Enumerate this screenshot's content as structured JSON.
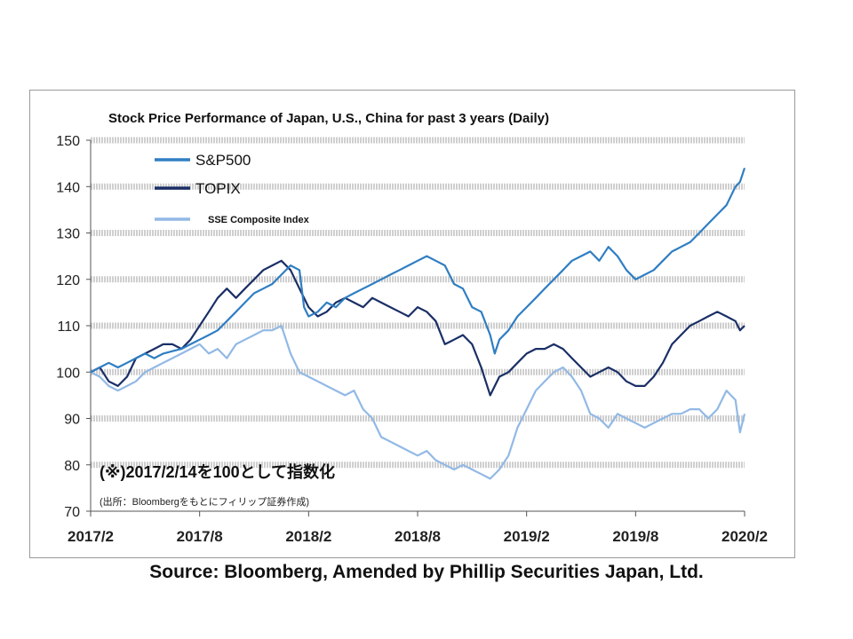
{
  "source_text": "Source: Bloomberg, Amended by Phillip Securities Japan, Ltd.",
  "chart_data": {
    "type": "line",
    "title": "Stock Price Performance of Japan, U.S., China for past 3 years (Daily)",
    "note_main": "(※)2017/2/14を100として指数化",
    "note_sub": "(出所：Bloombergをもとにフィリップ証券作成)",
    "xlabel": "",
    "ylabel": "",
    "ylim": [
      70,
      150
    ],
    "yticks": [
      70,
      80,
      90,
      100,
      110,
      120,
      130,
      140,
      150
    ],
    "xlim": [
      2017.125,
      2020.125
    ],
    "xticks": [
      {
        "value": 2017.125,
        "label": "2017/2"
      },
      {
        "value": 2017.625,
        "label": "2017/8"
      },
      {
        "value": 2018.125,
        "label": "2018/2"
      },
      {
        "value": 2018.625,
        "label": "2018/8"
      },
      {
        "value": 2019.125,
        "label": "2019/2"
      },
      {
        "value": 2019.625,
        "label": "2019/8"
      },
      {
        "value": 2020.125,
        "label": "2020/2"
      }
    ],
    "grid": "horizontal dashed bands",
    "legend_position": "top-left",
    "series": [
      {
        "name": "S&P500",
        "color": "#2f7ec2",
        "x": [
          2017.125,
          2017.167,
          2017.208,
          2017.25,
          2017.292,
          2017.333,
          2017.375,
          2017.417,
          2017.458,
          2017.5,
          2017.542,
          2017.583,
          2017.625,
          2017.667,
          2017.708,
          2017.75,
          2017.792,
          2017.833,
          2017.875,
          2017.917,
          2017.958,
          2018.0,
          2018.042,
          2018.083,
          2018.104,
          2018.125,
          2018.167,
          2018.208,
          2018.25,
          2018.292,
          2018.333,
          2018.375,
          2018.417,
          2018.458,
          2018.5,
          2018.542,
          2018.583,
          2018.625,
          2018.667,
          2018.708,
          2018.75,
          2018.792,
          2018.833,
          2018.875,
          2018.917,
          2018.958,
          2018.979,
          2019.0,
          2019.042,
          2019.083,
          2019.125,
          2019.167,
          2019.208,
          2019.25,
          2019.292,
          2019.333,
          2019.375,
          2019.417,
          2019.458,
          2019.5,
          2019.542,
          2019.583,
          2019.625,
          2019.667,
          2019.708,
          2019.75,
          2019.792,
          2019.833,
          2019.875,
          2019.917,
          2019.958,
          2020.0,
          2020.042,
          2020.083,
          2020.104,
          2020.125
        ],
        "values": [
          100,
          101,
          102,
          101,
          102,
          103,
          104,
          103,
          104,
          104.5,
          105,
          106,
          107,
          108,
          109,
          111,
          113,
          115,
          117,
          118,
          119,
          121,
          123,
          122,
          114,
          112,
          113,
          115,
          114,
          116,
          117,
          118,
          119,
          120,
          121,
          122,
          123,
          124,
          125,
          124,
          123,
          119,
          118,
          114,
          113,
          108,
          104,
          107,
          109,
          112,
          114,
          116,
          118,
          120,
          122,
          124,
          125,
          126,
          124,
          127,
          125,
          122,
          120,
          121,
          122,
          124,
          126,
          127,
          128,
          130,
          132,
          134,
          136,
          140,
          141,
          144
        ]
      },
      {
        "name": "TOPIX",
        "color": "#1a2f66",
        "x": [
          2017.125,
          2017.167,
          2017.208,
          2017.25,
          2017.292,
          2017.333,
          2017.375,
          2017.417,
          2017.458,
          2017.5,
          2017.542,
          2017.583,
          2017.625,
          2017.667,
          2017.708,
          2017.75,
          2017.792,
          2017.833,
          2017.875,
          2017.917,
          2017.958,
          2018.0,
          2018.042,
          2018.083,
          2018.125,
          2018.167,
          2018.208,
          2018.25,
          2018.292,
          2018.333,
          2018.375,
          2018.417,
          2018.458,
          2018.5,
          2018.542,
          2018.583,
          2018.625,
          2018.667,
          2018.708,
          2018.75,
          2018.792,
          2018.833,
          2018.875,
          2018.917,
          2018.958,
          2019.0,
          2019.042,
          2019.083,
          2019.125,
          2019.167,
          2019.208,
          2019.25,
          2019.292,
          2019.333,
          2019.375,
          2019.417,
          2019.458,
          2019.5,
          2019.542,
          2019.583,
          2019.625,
          2019.667,
          2019.708,
          2019.75,
          2019.792,
          2019.833,
          2019.875,
          2019.917,
          2019.958,
          2020.0,
          2020.042,
          2020.083,
          2020.104,
          2020.125
        ],
        "values": [
          100,
          101,
          98,
          97,
          99,
          103,
          104,
          105,
          106,
          106,
          105,
          107,
          110,
          113,
          116,
          118,
          116,
          118,
          120,
          122,
          123,
          124,
          122,
          118,
          114,
          112,
          113,
          115,
          116,
          115,
          114,
          116,
          115,
          114,
          113,
          112,
          114,
          113,
          111,
          106,
          107,
          108,
          106,
          101,
          95,
          99,
          100,
          102,
          104,
          105,
          105,
          106,
          105,
          103,
          101,
          99,
          100,
          101,
          100,
          98,
          97,
          97,
          99,
          102,
          106,
          108,
          110,
          111,
          112,
          113,
          112,
          111,
          109,
          110
        ]
      },
      {
        "name": "SSE Composite Index",
        "color": "#92b9e5",
        "x": [
          2017.125,
          2017.167,
          2017.208,
          2017.25,
          2017.292,
          2017.333,
          2017.375,
          2017.417,
          2017.458,
          2017.5,
          2017.542,
          2017.583,
          2017.625,
          2017.667,
          2017.708,
          2017.75,
          2017.792,
          2017.833,
          2017.875,
          2017.917,
          2017.958,
          2018.0,
          2018.042,
          2018.083,
          2018.125,
          2018.167,
          2018.208,
          2018.25,
          2018.292,
          2018.333,
          2018.375,
          2018.417,
          2018.458,
          2018.5,
          2018.542,
          2018.583,
          2018.625,
          2018.667,
          2018.708,
          2018.75,
          2018.792,
          2018.833,
          2018.875,
          2018.917,
          2018.958,
          2019.0,
          2019.042,
          2019.083,
          2019.125,
          2019.167,
          2019.208,
          2019.25,
          2019.292,
          2019.333,
          2019.375,
          2019.417,
          2019.458,
          2019.5,
          2019.542,
          2019.583,
          2019.625,
          2019.667,
          2019.708,
          2019.75,
          2019.792,
          2019.833,
          2019.875,
          2019.917,
          2019.958,
          2020.0,
          2020.042,
          2020.083,
          2020.104,
          2020.125
        ],
        "values": [
          100,
          99,
          97,
          96,
          97,
          98,
          100,
          101,
          102,
          103,
          104,
          105,
          106,
          104,
          105,
          103,
          106,
          107,
          108,
          109,
          109,
          110,
          104,
          100,
          99,
          98,
          97,
          96,
          95,
          96,
          92,
          90,
          86,
          85,
          84,
          83,
          82,
          83,
          81,
          80,
          79,
          80,
          79,
          78,
          77,
          79,
          82,
          88,
          92,
          96,
          98,
          100,
          101,
          99,
          96,
          91,
          90,
          88,
          91,
          90,
          89,
          88,
          89,
          90,
          91,
          91,
          92,
          92,
          90,
          92,
          96,
          94,
          87,
          91
        ]
      }
    ]
  }
}
